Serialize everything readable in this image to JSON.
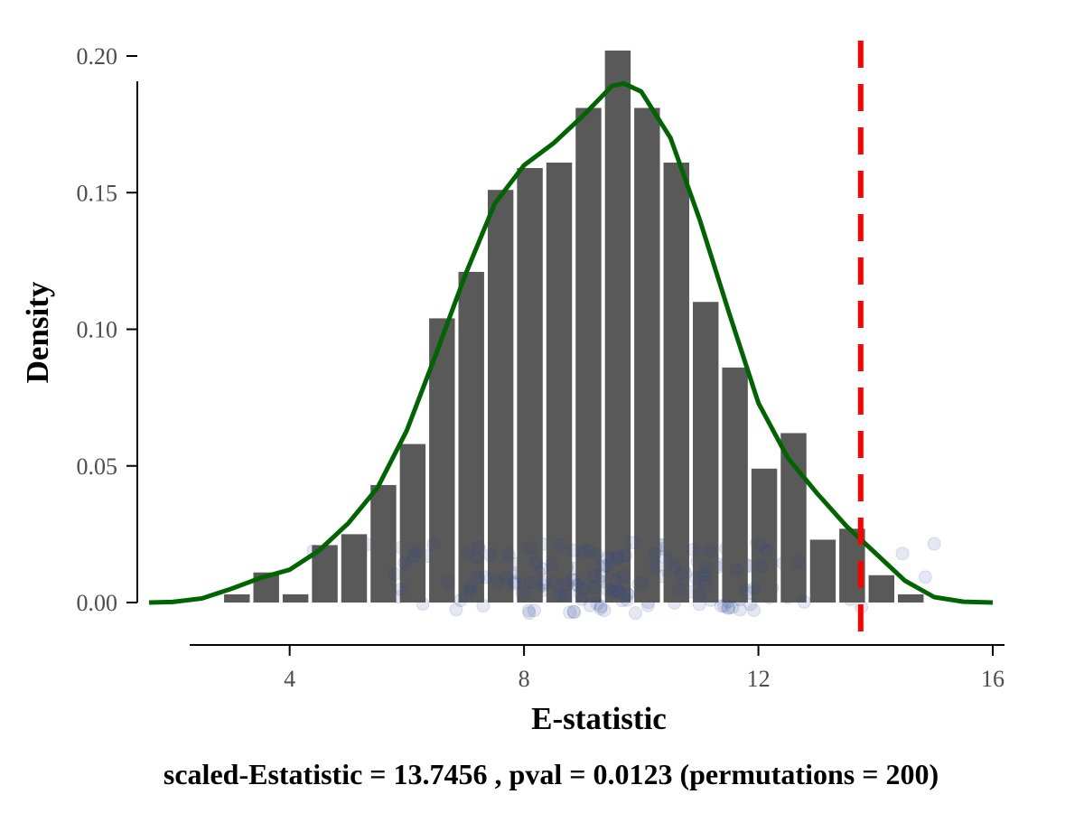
{
  "chart_data": {
    "type": "histogram",
    "xlabel": "E-statistic",
    "ylabel": "Density",
    "caption": "scaled-Estatistic = 13.7456 , pval = 0.0123 (permutations = 200)",
    "xlim": [
      1.4,
      16.2
    ],
    "ylim": [
      0,
      0.205
    ],
    "x_ticks": [
      4,
      8,
      12,
      16
    ],
    "x_tick_labels": [
      "4",
      "8",
      "12",
      "16"
    ],
    "y_ticks": [
      0,
      0.05,
      0.1,
      0.15,
      0.2
    ],
    "y_tick_labels": [
      "0.00",
      "0.05",
      "0.10",
      "0.15",
      "0.20"
    ],
    "bins": [
      {
        "x": 3.1,
        "density": 0.003
      },
      {
        "x": 3.6,
        "density": 0.011
      },
      {
        "x": 4.1,
        "density": 0.003
      },
      {
        "x": 4.6,
        "density": 0.021
      },
      {
        "x": 5.1,
        "density": 0.025
      },
      {
        "x": 5.6,
        "density": 0.043
      },
      {
        "x": 6.1,
        "density": 0.058
      },
      {
        "x": 6.6,
        "density": 0.104
      },
      {
        "x": 7.1,
        "density": 0.121
      },
      {
        "x": 7.6,
        "density": 0.151
      },
      {
        "x": 8.1,
        "density": 0.159
      },
      {
        "x": 8.6,
        "density": 0.161
      },
      {
        "x": 9.1,
        "density": 0.181
      },
      {
        "x": 9.6,
        "density": 0.202
      },
      {
        "x": 10.1,
        "density": 0.181
      },
      {
        "x": 10.6,
        "density": 0.161
      },
      {
        "x": 11.1,
        "density": 0.11
      },
      {
        "x": 11.6,
        "density": 0.086
      },
      {
        "x": 12.1,
        "density": 0.049
      },
      {
        "x": 12.6,
        "density": 0.062
      },
      {
        "x": 13.1,
        "density": 0.023
      },
      {
        "x": 13.6,
        "density": 0.027
      },
      {
        "x": 14.1,
        "density": 0.01
      },
      {
        "x": 14.6,
        "density": 0.003
      }
    ],
    "bin_width": 0.5,
    "density_curve": {
      "x": [
        1.6,
        2.0,
        2.5,
        3.0,
        3.5,
        4.0,
        4.5,
        5.0,
        5.5,
        6.0,
        6.5,
        7.0,
        7.5,
        8.0,
        8.5,
        9.0,
        9.5,
        9.7,
        10.0,
        10.5,
        11.0,
        11.5,
        12.0,
        12.5,
        13.0,
        13.5,
        14.0,
        14.5,
        15.0,
        15.5,
        16.0
      ],
      "y": [
        0.0,
        0.0002,
        0.0015,
        0.005,
        0.009,
        0.012,
        0.019,
        0.029,
        0.042,
        0.063,
        0.091,
        0.12,
        0.146,
        0.16,
        0.168,
        0.178,
        0.189,
        0.19,
        0.187,
        0.17,
        0.14,
        0.106,
        0.073,
        0.053,
        0.04,
        0.028,
        0.018,
        0.008,
        0.002,
        0.0003,
        0.0
      ]
    },
    "reference_line": {
      "x": 13.7456,
      "style": "dashed"
    },
    "jitter_points": {
      "count": 200,
      "x_center": 9.5,
      "x_sd": 2.1,
      "y_min": -0.004,
      "y_max": 0.022
    },
    "colors": {
      "bars": "#595959",
      "curve": "#006400",
      "reference_line": "#ff0000",
      "points": "#2a4592",
      "axis": "#000000",
      "tick_label": "#4d4d4d"
    }
  }
}
